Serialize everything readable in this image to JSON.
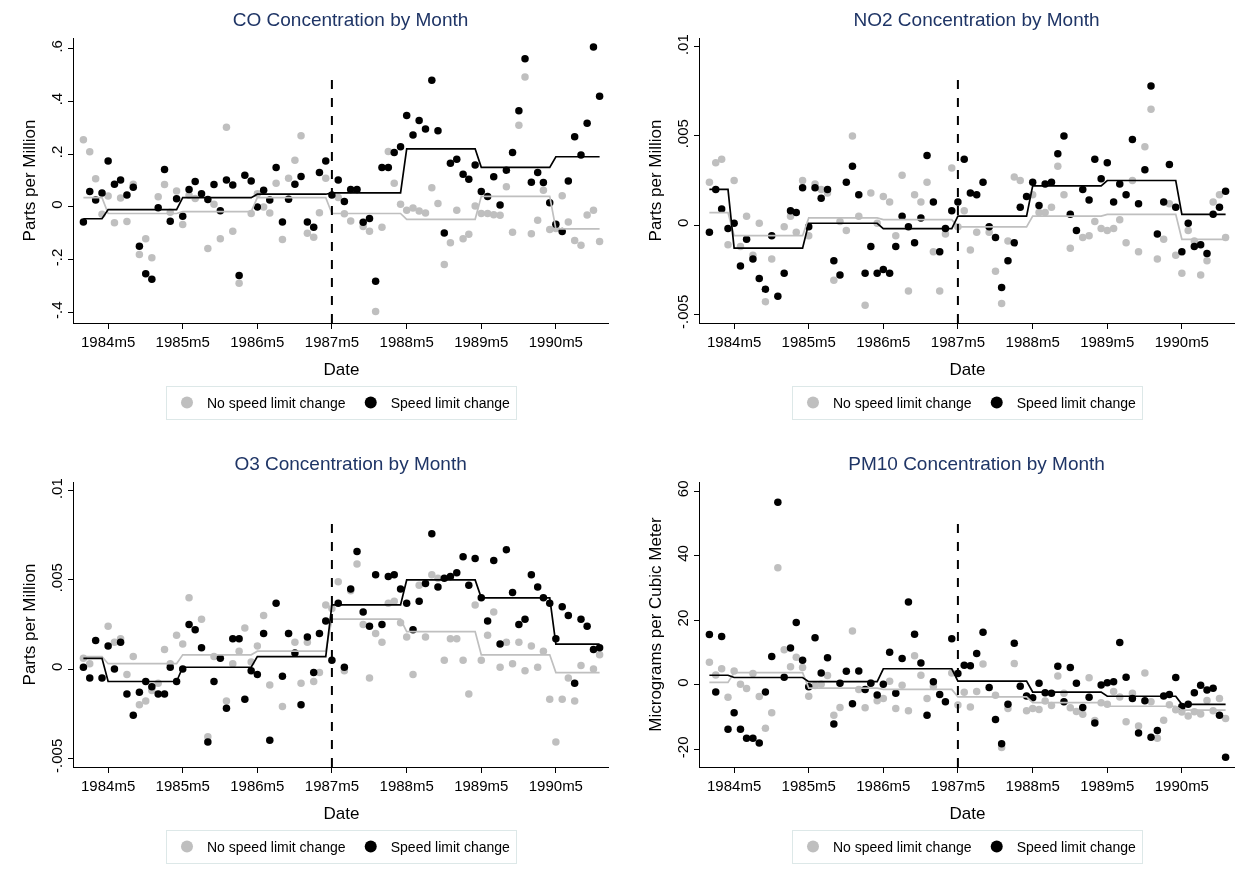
{
  "chart_data": [
    {
      "type": "scatter",
      "title": "CO Concentration by Month",
      "xlabel": "Date",
      "ylabel": "Parts per Million",
      "legend": "bottom",
      "marker": "circle",
      "x": [
        "1984-01",
        "1984-02",
        "1984-03",
        "1984-04",
        "1984-05",
        "1984-06",
        "1984-07",
        "1984-08",
        "1984-09",
        "1984-10",
        "1984-11",
        "1984-12",
        "1985-01",
        "1985-02",
        "1985-03",
        "1985-04",
        "1985-05",
        "1985-06",
        "1985-07",
        "1985-08",
        "1985-09",
        "1985-10",
        "1985-11",
        "1985-12",
        "1986-01",
        "1986-02",
        "1986-03",
        "1986-04",
        "1986-05",
        "1986-06",
        "1986-07",
        "1986-08",
        "1986-09",
        "1986-10",
        "1986-11",
        "1986-12",
        "1987-01",
        "1987-02",
        "1987-03",
        "1987-04",
        "1987-05",
        "1987-06",
        "1987-07",
        "1987-08",
        "1987-09",
        "1987-10",
        "1987-11",
        "1987-12",
        "1988-01",
        "1988-02",
        "1988-03",
        "1988-04",
        "1988-05",
        "1988-06",
        "1988-07",
        "1988-08",
        "1988-09",
        "1988-10",
        "1988-11",
        "1988-12",
        "1989-01",
        "1989-02",
        "1989-03",
        "1989-04",
        "1989-05",
        "1989-06",
        "1989-07",
        "1989-08",
        "1989-09",
        "1989-10",
        "1989-11",
        "1989-12",
        "1990-01",
        "1990-02",
        "1990-03",
        "1990-04",
        "1990-05",
        "1990-06",
        "1990-07",
        "1990-08",
        "1990-09",
        "1990-10",
        "1990-11",
        "1990-12"
      ],
      "xlim": [
        "1983-11-16",
        "1991-01-16"
      ],
      "xticks": [
        {
          "value": "1984-05",
          "label": "1984m5"
        },
        {
          "value": "1985-05",
          "label": "1985m5"
        },
        {
          "value": "1986-05",
          "label": "1986m5"
        },
        {
          "value": "1987-05",
          "label": "1987m5"
        },
        {
          "value": "1988-05",
          "label": "1988m5"
        },
        {
          "value": "1989-05",
          "label": "1989m5"
        },
        {
          "value": "1990-05",
          "label": "1990m5"
        }
      ],
      "ylim": [
        -0.44,
        0.64
      ],
      "yticks": [
        {
          "value": -0.4,
          "label": "-.4"
        },
        {
          "value": -0.2,
          "label": "-.2"
        },
        0,
        {
          "value": 0.2,
          "label": ".2"
        },
        {
          "value": 0.4,
          "label": ".4"
        },
        {
          "value": 0.6,
          "label": ".6"
        }
      ],
      "ref_lines": [
        {
          "axis": "x",
          "value": "1987-05",
          "line_style": "dashed",
          "color": "#000000"
        }
      ],
      "series": [
        {
          "name": "No speed limit change",
          "color": "#bfbfbf",
          "values": [
            0.254,
            0.209,
            0.107,
            -0.028,
            0.041,
            -0.06,
            0.034,
            -0.055,
            0.086,
            -0.18,
            -0.121,
            -0.193,
            0.038,
            0.085,
            -0.02,
            0.06,
            -0.067,
            0.044,
            0.032,
            null,
            -0.158,
            0.01,
            -0.121,
            0.302,
            -0.092,
            -0.289,
            null,
            -0.025,
            0.05,
            0.0,
            -0.023,
            0.09,
            -0.124,
            0.109,
            0.177,
            0.27,
            -0.1,
            -0.115,
            -0.022,
            0.109,
            null,
            0.036,
            -0.026,
            -0.053,
            null,
            -0.074,
            -0.092,
            -0.396,
            -0.077,
            0.21,
            0.09,
            0.01,
            -0.013,
            -0.004,
            -0.016,
            -0.023,
            0.073,
            0.013,
            -0.218,
            -0.136,
            -0.013,
            -0.121,
            -0.104,
            0.003,
            -0.025,
            -0.025,
            -0.03,
            -0.032,
            0.076,
            -0.096,
            0.309,
            0.492,
            -0.102,
            -0.051,
            0.063,
            -0.086,
            -0.082,
            0.042,
            -0.057,
            -0.127,
            -0.145,
            -0.031,
            -0.013,
            -0.131
          ]
        },
        {
          "name": "Speed limit change",
          "color": "#000000",
          "values": [
            -0.057,
            0.058,
            0.026,
            0.053,
            0.174,
            0.086,
            0.102,
            0.045,
            0.074,
            -0.149,
            -0.253,
            -0.274,
            -0.003,
            0.142,
            -0.054,
            0.031,
            -0.035,
            0.066,
            0.096,
            0.05,
            0.028,
            0.085,
            -0.015,
            0.102,
            0.083,
            -0.26,
            0.12,
            0.098,
            0.0,
            0.063,
            0.026,
            0.149,
            -0.057,
            0.029,
            0.086,
            0.115,
            -0.057,
            -0.077,
            0.13,
            0.174,
            0.045,
            0.102,
            0.02,
            0.066,
            0.066,
            -0.058,
            -0.044,
            -0.282,
            0.149,
            0.149,
            0.206,
            0.228,
            0.346,
            0.272,
            0.327,
            0.295,
            0.48,
            0.289,
            -0.099,
            0.165,
            0.181,
            0.124,
            0.105,
            0.159,
            0.058,
            0.039,
            0.114,
            0.007,
            0.139,
            0.206,
            0.364,
            0.561,
            0.093,
            0.13,
            0.092,
            0.016,
            -0.066,
            -0.093,
            0.098,
            0.266,
            0.197,
            0.317,
            0.606,
            0.419
          ]
        },
        {
          "type": "line",
          "color": "#bfbfbf",
          "x": [
            "1984-01",
            "1984-04",
            "1984-05",
            "1985-04",
            "1985-05",
            "1986-04",
            "1986-05",
            "1987-04",
            "1987-05",
            "1988-04",
            "1988-05",
            "1989-04",
            "1989-05",
            "1990-04",
            "1990-05",
            "1990-12"
          ],
          "marker": "none",
          "values": [
            0.035,
            0.035,
            -0.025,
            -0.025,
            -0.018,
            -0.018,
            0.035,
            0.035,
            -0.025,
            -0.025,
            -0.047,
            -0.047,
            0.04,
            0.04,
            -0.083,
            -0.083
          ]
        },
        {
          "type": "line",
          "color": "#000000",
          "x": [
            "1984-01",
            "1984-04",
            "1984-05",
            "1985-04",
            "1985-05",
            "1986-04",
            "1986-05",
            "1987-04",
            "1987-05",
            "1988-04",
            "1988-05",
            "1989-04",
            "1989-05",
            "1990-04",
            "1990-05",
            "1990-12"
          ],
          "marker": "none",
          "values": [
            -0.045,
            -0.045,
            -0.01,
            -0.01,
            0.035,
            0.035,
            0.048,
            0.048,
            0.053,
            0.053,
            0.22,
            0.22,
            0.15,
            0.15,
            0.19,
            0.19
          ]
        }
      ]
    },
    {
      "type": "scatter",
      "title": "NO2 Concentration by Month",
      "xlabel": "Date",
      "ylabel": "Parts per Million",
      "legend": "bottom",
      "marker": "circle",
      "x": [
        "1984-01",
        "1984-02",
        "1984-03",
        "1984-04",
        "1984-05",
        "1984-06",
        "1984-07",
        "1984-08",
        "1984-09",
        "1984-10",
        "1984-11",
        "1984-12",
        "1985-01",
        "1985-02",
        "1985-03",
        "1985-04",
        "1985-05",
        "1985-06",
        "1985-07",
        "1985-08",
        "1985-09",
        "1985-10",
        "1985-11",
        "1985-12",
        "1986-01",
        "1986-02",
        "1986-03",
        "1986-04",
        "1986-05",
        "1986-06",
        "1986-07",
        "1986-08",
        "1986-09",
        "1986-10",
        "1986-11",
        "1986-12",
        "1987-01",
        "1987-02",
        "1987-03",
        "1987-04",
        "1987-05",
        "1987-06",
        "1987-07",
        "1987-08",
        "1987-09",
        "1987-10",
        "1987-11",
        "1987-12",
        "1988-01",
        "1988-02",
        "1988-03",
        "1988-04",
        "1988-05",
        "1988-06",
        "1988-07",
        "1988-08",
        "1988-09",
        "1988-10",
        "1988-11",
        "1988-12",
        "1989-01",
        "1989-02",
        "1989-03",
        "1989-04",
        "1989-05",
        "1989-06",
        "1989-07",
        "1989-08",
        "1989-09",
        "1989-10",
        "1989-11",
        "1989-12",
        "1990-01",
        "1990-02",
        "1990-03",
        "1990-04",
        "1990-05",
        "1990-06",
        "1990-07",
        "1990-08",
        "1990-09",
        "1990-10",
        "1990-11",
        "1990-12"
      ],
      "xlim": [
        "1983-11-16",
        "1991-01-16"
      ],
      "xticks": [
        {
          "value": "1984-05",
          "label": "1984m5"
        },
        {
          "value": "1985-05",
          "label": "1985m5"
        },
        {
          "value": "1986-05",
          "label": "1986m5"
        },
        {
          "value": "1987-05",
          "label": "1987m5"
        },
        {
          "value": "1988-05",
          "label": "1988m5"
        },
        {
          "value": "1989-05",
          "label": "1989m5"
        },
        {
          "value": "1990-05",
          "label": "1990m5"
        }
      ],
      "ylim": [
        -0.0055,
        0.0105
      ],
      "yticks": [
        {
          "value": -0.005,
          "label": "-.005"
        },
        0,
        {
          "value": 0.005,
          "label": ".005"
        },
        {
          "value": 0.01,
          "label": ".01"
        }
      ],
      "ref_lines": [
        {
          "axis": "x",
          "value": "1987-05",
          "line_style": "dashed",
          "color": "#000000"
        }
      ],
      "series": [
        {
          "name": "No speed limit change",
          "color": "#bfbfbf",
          "values": [
            0.0024,
            0.0035,
            0.0037,
            -0.0011,
            0.0025,
            -0.0012,
            0.0005,
            -0.0017,
            0.0001,
            -0.0043,
            -0.0019,
            null,
            -0.0001,
            0.0005,
            -0.0004,
            0.0025,
            -0.0006,
            0.0023,
            0.002,
            0.0018,
            -0.0031,
            0.0002,
            -0.0003,
            0.005,
            0.0005,
            -0.0045,
            0.0018,
            0.0001,
            0.0016,
            0.0013,
            -0.0006,
            0.0028,
            -0.0037,
            0.0017,
            0.0013,
            0.0024,
            -0.0015,
            -0.0037,
            -0.0005,
            0.0032,
            -0.0001,
            0.0008,
            -0.0014,
            -0.0004,
            null,
            -0.0004,
            -0.0026,
            -0.0044,
            -0.0009,
            0.0027,
            0.0025,
            null,
            0.0017,
            0.0007,
            0.0007,
            0.001,
            0.0033,
            0.0017,
            -0.0013,
            null,
            -0.0007,
            -0.0006,
            0.0002,
            -0.0002,
            -0.0003,
            -0.0002,
            0.0003,
            -0.001,
            0.0025,
            -0.0015,
            0.0044,
            0.0065,
            -0.0019,
            -0.0008,
            0.0012,
            -0.0017,
            -0.0027,
            -0.0003,
            -0.0009,
            -0.0028,
            -0.002,
            0.0013,
            0.0017,
            -0.0007
          ]
        },
        {
          "name": "Speed limit change",
          "color": "#000000",
          "values": [
            -0.0004,
            0.002,
            0.0009,
            -0.0002,
            0.0001,
            -0.0023,
            -0.0008,
            -0.0019,
            -0.003,
            -0.0036,
            -0.0006,
            -0.004,
            -0.0027,
            0.0008,
            0.0007,
            0.0021,
            -0.0001,
            0.0021,
            0.0015,
            0.002,
            -0.002,
            -0.0028,
            0.0024,
            0.0033,
            0.0017,
            -0.0027,
            -0.0012,
            -0.0027,
            -0.0025,
            -0.0027,
            -0.0012,
            0.0005,
            -0.0001,
            -0.001,
            0.0004,
            0.0039,
            0.0013,
            -0.0015,
            -0.0002,
            0.0008,
            0.0013,
            0.0037,
            0.0018,
            0.0017,
            0.0024,
            -0.0001,
            -0.0007,
            -0.0035,
            -0.002,
            -0.001,
            0.001,
            0.0016,
            0.0024,
            0.0011,
            0.0023,
            0.0024,
            0.004,
            0.005,
            0.0006,
            -0.0003,
            0.002,
            0.0014,
            0.0037,
            0.0026,
            0.0035,
            0.0013,
            0.0023,
            0.0017,
            0.0048,
            0.0012,
            0.0031,
            0.0078,
            -0.0005,
            0.0013,
            0.0034,
            0.001,
            -0.0015,
            0.0001,
            -0.0012,
            -0.0011,
            -0.0016,
            0.0006,
            0.001,
            0.0019
          ]
        },
        {
          "type": "line",
          "color": "#bfbfbf",
          "x": [
            "1984-01",
            "1984-04",
            "1984-05",
            "1985-04",
            "1985-05",
            "1986-04",
            "1986-05",
            "1987-04",
            "1987-05",
            "1988-04",
            "1988-05",
            "1989-04",
            "1989-05",
            "1990-04",
            "1990-05",
            "1990-12"
          ],
          "marker": "none",
          "values": [
            0.0007,
            0.0007,
            -0.0006,
            -0.0006,
            0.0004,
            0.0004,
            0.0003,
            0.0003,
            -0.0001,
            -0.0001,
            0.0005,
            0.0005,
            0.0006,
            0.0006,
            -0.0008,
            -0.0008
          ]
        },
        {
          "type": "line",
          "color": "#000000",
          "x": [
            "1984-01",
            "1984-04",
            "1984-05",
            "1985-04",
            "1985-05",
            "1986-04",
            "1986-05",
            "1987-04",
            "1987-05",
            "1988-04",
            "1988-05",
            "1989-04",
            "1989-05",
            "1990-04",
            "1990-05",
            "1990-12"
          ],
          "marker": "none",
          "values": [
            0.002,
            0.002,
            -0.0013,
            -0.0013,
            0.0001,
            0.0001,
            -0.0002,
            -0.0002,
            0.0005,
            0.0005,
            0.0022,
            0.0022,
            0.0025,
            0.0025,
            0.0006,
            0.0006
          ]
        }
      ]
    },
    {
      "type": "scatter",
      "title": "O3 Concentration by Month",
      "xlabel": "Date",
      "ylabel": "Parts per Million",
      "legend": "bottom",
      "marker": "circle",
      "x": [
        "1984-01",
        "1984-02",
        "1984-03",
        "1984-04",
        "1984-05",
        "1984-06",
        "1984-07",
        "1984-08",
        "1984-09",
        "1984-10",
        "1984-11",
        "1984-12",
        "1985-01",
        "1985-02",
        "1985-03",
        "1985-04",
        "1985-05",
        "1985-06",
        "1985-07",
        "1985-08",
        "1985-09",
        "1985-10",
        "1985-11",
        "1985-12",
        "1986-01",
        "1986-02",
        "1986-03",
        "1986-04",
        "1986-05",
        "1986-06",
        "1986-07",
        "1986-08",
        "1986-09",
        "1986-10",
        "1986-11",
        "1986-12",
        "1987-01",
        "1987-02",
        "1987-03",
        "1987-04",
        "1987-05",
        "1987-06",
        "1987-07",
        "1987-08",
        "1987-09",
        "1987-10",
        "1987-11",
        "1987-12",
        "1988-01",
        "1988-02",
        "1988-03",
        "1988-04",
        "1988-05",
        "1988-06",
        "1988-07",
        "1988-08",
        "1988-09",
        "1988-10",
        "1988-11",
        "1988-12",
        "1989-01",
        "1989-02",
        "1989-03",
        "1989-04",
        "1989-05",
        "1989-06",
        "1989-07",
        "1989-08",
        "1989-09",
        "1989-10",
        "1989-11",
        "1989-12",
        "1990-01",
        "1990-02",
        "1990-03",
        "1990-04",
        "1990-05",
        "1990-06",
        "1990-07",
        "1990-08",
        "1990-09",
        "1990-10",
        "1990-11",
        "1990-12"
      ],
      "xlim": [
        "1983-11-16",
        "1991-01-16"
      ],
      "xticks": [
        {
          "value": "1984-05",
          "label": "1984m5"
        },
        {
          "value": "1985-05",
          "label": "1985m5"
        },
        {
          "value": "1986-05",
          "label": "1986m5"
        },
        {
          "value": "1987-05",
          "label": "1987m5"
        },
        {
          "value": "1988-05",
          "label": "1988m5"
        },
        {
          "value": "1989-05",
          "label": "1989m5"
        },
        {
          "value": "1990-05",
          "label": "1990m5"
        }
      ],
      "ylim": [
        -0.0055,
        0.0105
      ],
      "yticks": [
        {
          "value": -0.005,
          "label": "-.005"
        },
        0,
        {
          "value": 0.005,
          "label": ".005"
        },
        {
          "value": 0.01,
          "label": ".01"
        }
      ],
      "ref_lines": [
        {
          "axis": "x",
          "value": "1987-05",
          "line_style": "dashed",
          "color": "#000000"
        }
      ],
      "series": [
        {
          "name": "No speed limit change",
          "color": "#bfbfbf",
          "values": [
            0.0006,
            0.0003,
            null,
            null,
            0.0024,
            0.0015,
            0.0017,
            -0.0003,
            0.0007,
            -0.002,
            -0.0018,
            -0.0012,
            -0.0008,
            0.0011,
            0.0003,
            0.0019,
            0.0014,
            0.004,
            null,
            0.0028,
            -0.0038,
            0.0007,
            null,
            -0.0018,
            0.0003,
            0.001,
            0.0023,
            0.0004,
            0.0013,
            0.003,
            -0.0009,
            null,
            -0.0021,
            0.002,
            0.0015,
            -0.0008,
            0.0015,
            -0.0007,
            -0.0002,
            0.0036,
            0.0034,
            0.0049,
            -0.0001,
            0.0044,
            0.0059,
            0.0025,
            -0.0005,
            0.002,
            0.0015,
            0.0037,
            0.0038,
            0.0026,
            0.0018,
            -0.0003,
            0.0047,
            0.0018,
            0.0053,
            0.0051,
            0.0005,
            0.0017,
            0.0017,
            0.0005,
            -0.0014,
            0.0036,
            0.0005,
            0.0019,
            0.0032,
            0.0001,
            0.0015,
            0.0003,
            0.0015,
            -0.0001,
            0.0013,
            0.0001,
            0.001,
            -0.0017,
            -0.0041,
            -0.0017,
            -0.0005,
            -0.0018,
            0.0002,
            null,
            0.0,
            0.0008
          ]
        },
        {
          "name": "Speed limit change",
          "color": "#000000",
          "values": [
            0.0001,
            -0.0005,
            0.0016,
            -0.0005,
            0.0013,
            0.0,
            0.0015,
            -0.0014,
            -0.0026,
            -0.0013,
            -0.0007,
            -0.001,
            -0.0014,
            -0.0014,
            0.0001,
            -0.0007,
            0.0,
            0.0025,
            0.0022,
            0.0012,
            -0.0041,
            -0.0007,
            0.0006,
            -0.0022,
            0.0017,
            0.0017,
            -0.0017,
            -0.0001,
            -0.0003,
            0.002,
            -0.004,
            0.0037,
            -0.0004,
            0.002,
            0.0009,
            -0.002,
            0.0018,
            -0.0002,
            0.002,
            0.0027,
            0.0005,
            0.0037,
            0.0001,
            0.0045,
            0.0066,
            0.0032,
            0.0024,
            0.0053,
            0.0025,
            0.0052,
            0.0053,
            0.0045,
            0.0037,
            0.0022,
            0.0038,
            0.0048,
            0.0076,
            0.0046,
            0.0051,
            0.0052,
            0.0054,
            0.0063,
            0.0047,
            0.0062,
            0.004,
            0.0027,
            0.0061,
            0.0014,
            0.0067,
            0.0043,
            0.0025,
            0.0028,
            0.0053,
            0.0046,
            0.004,
            0.0037,
            0.0017,
            0.0035,
            0.003,
            -0.0008,
            0.0028,
            0.0024,
            0.0011,
            0.0012
          ]
        },
        {
          "type": "line",
          "color": "#bfbfbf",
          "x": [
            "1984-01",
            "1984-04",
            "1984-05",
            "1985-04",
            "1985-05",
            "1986-04",
            "1986-05",
            "1987-04",
            "1987-05",
            "1988-04",
            "1988-05",
            "1989-04",
            "1989-05",
            "1990-04",
            "1990-05",
            "1990-12"
          ],
          "marker": "none",
          "values": [
            0.0007,
            0.0007,
            0.0003,
            0.0003,
            0.0008,
            0.0008,
            0.001,
            0.001,
            0.0028,
            0.0028,
            0.0021,
            0.0021,
            0.0008,
            0.0008,
            -0.0002,
            -0.0002
          ]
        },
        {
          "type": "line",
          "color": "#000000",
          "x": [
            "1984-01",
            "1984-04",
            "1984-05",
            "1985-04",
            "1985-05",
            "1986-04",
            "1986-05",
            "1987-04",
            "1987-05",
            "1988-04",
            "1988-05",
            "1989-04",
            "1989-05",
            "1990-04",
            "1990-05",
            "1990-12"
          ],
          "marker": "none",
          "values": [
            0.0006,
            0.0006,
            -0.0007,
            -0.0007,
            0.0001,
            0.0001,
            0.0007,
            0.0007,
            0.0036,
            0.0036,
            0.005,
            0.005,
            0.004,
            0.004,
            0.0014,
            0.0014
          ]
        }
      ]
    },
    {
      "type": "scatter",
      "title": "PM10 Concentration by Month",
      "xlabel": "Date",
      "ylabel": "Micrograms per Cubic Meter",
      "legend": "bottom",
      "marker": "circle",
      "x": [
        "1984-01",
        "1984-02",
        "1984-03",
        "1984-04",
        "1984-05",
        "1984-06",
        "1984-07",
        "1984-08",
        "1984-09",
        "1984-10",
        "1984-11",
        "1984-12",
        "1985-01",
        "1985-02",
        "1985-03",
        "1985-04",
        "1985-05",
        "1985-06",
        "1985-07",
        "1985-08",
        "1985-09",
        "1985-10",
        "1985-11",
        "1985-12",
        "1986-01",
        "1986-02",
        "1986-03",
        "1986-04",
        "1986-05",
        "1986-06",
        "1986-07",
        "1986-08",
        "1986-09",
        "1986-10",
        "1986-11",
        "1986-12",
        "1987-01",
        "1987-02",
        "1987-03",
        "1987-04",
        "1987-05",
        "1987-06",
        "1987-07",
        "1987-08",
        "1987-09",
        "1987-10",
        "1987-11",
        "1987-12",
        "1988-01",
        "1988-02",
        "1988-03",
        "1988-04",
        "1988-05",
        "1988-06",
        "1988-07",
        "1988-08",
        "1988-09",
        "1988-10",
        "1988-11",
        "1988-12",
        "1989-01",
        "1989-02",
        "1989-03",
        "1989-04",
        "1989-05",
        "1989-06",
        "1989-07",
        "1989-08",
        "1989-09",
        "1989-10",
        "1989-11",
        "1989-12",
        "1990-01",
        "1990-02",
        "1990-03",
        "1990-04",
        "1990-05",
        "1990-06",
        "1990-07",
        "1990-08",
        "1990-09",
        "1990-10",
        "1990-11",
        "1990-12"
      ],
      "xlim": [
        "1983-11-16",
        "1991-01-16"
      ],
      "xticks": [
        {
          "value": "1984-05",
          "label": "1984m5"
        },
        {
          "value": "1985-05",
          "label": "1985m5"
        },
        {
          "value": "1986-05",
          "label": "1986m5"
        },
        {
          "value": "1987-05",
          "label": "1987m5"
        },
        {
          "value": "1988-05",
          "label": "1988m5"
        },
        {
          "value": "1989-05",
          "label": "1989m5"
        },
        {
          "value": "1990-05",
          "label": "1990m5"
        }
      ],
      "ylim": [
        -25.4,
        62.8
      ],
      "yticks": [
        -20,
        0,
        20,
        40,
        60
      ],
      "ref_lines": [
        {
          "axis": "x",
          "value": "1987-05",
          "line_style": "dashed",
          "color": "#000000"
        }
      ],
      "series": [
        {
          "name": "No speed limit change",
          "color": "#bfbfbf",
          "values": [
            7,
            3.1,
            5,
            -3.8,
            4.3,
            0.2,
            -1.1,
            3.5,
            -3.6,
            -13.4,
            -8.6,
            36.3,
            10.9,
            5.6,
            8.6,
            5.4,
            -3.5,
            -0.2,
            0.2,
            2.9,
            -9.4,
            -7,
            null,
            16.7,
            -1.4,
            -7.1,
            0.7,
            -4.9,
            -4.2,
            1.1,
            -7.3,
            -0.1,
            -8,
            9,
            3,
            -4.2,
            -0.5,
            null,
            null,
            3.7,
            -6.2,
            -2.3,
            -6.8,
            -2,
            6.5,
            null,
            -3.2,
            -19.4,
            -7.3,
            6.6,
            null,
            -8,
            -7.3,
            -7.6,
            -5,
            -6.4,
            2.8,
            -2.6,
            -7.1,
            -8.2,
            -9.1,
            2.2,
            -11,
            -5.5,
            -6,
            -2,
            -3.7,
            -11.4,
            -2.6,
            -12.7,
            3.7,
            -5.2,
            -16.5,
            -10.9,
            -6.1,
            -7.7,
            -8.4,
            -9.6,
            -8.3,
            -9,
            -4.8,
            -8,
            -4.2,
            -10.4
          ]
        },
        {
          "name": "Speed limit change",
          "color": "#000000",
          "values": [
            15.6,
            -2.2,
            15,
            -13.7,
            -8.6,
            -13.7,
            -16.5,
            -16.5,
            -18,
            -2.2,
            8.8,
            56.5,
            2.4,
            11.4,
            19.3,
            7.6,
            -0.6,
            14.6,
            3.7,
            8.4,
            -12.1,
            0.5,
            4.2,
            -5.8,
            4.3,
            -1.4,
            0.5,
            -3.1,
            0.2,
            10.1,
            -2.6,
            8.2,
            25.7,
            15.7,
            6.8,
            -9.4,
            1,
            -3,
            -5.2,
            14.3,
            3.5,
            6.1,
            5.9,
            9.7,
            16.3,
            -0.8,
            -10.7,
            -18.2,
            -6,
            12.9,
            -0.4,
            -3.4,
            -4,
            0.5,
            -2.4,
            -2.6,
            5.8,
            -5.2,
            5.4,
            0.5,
            -7,
            -3.8,
            -11.8,
            0,
            0.7,
            1,
            13.1,
            2.4,
            -4.2,
            -14.9,
            -4.9,
            -16.2,
            -14.1,
            -3.4,
            -3,
            2.3,
            -6.7,
            -6,
            -2.4,
            -0.1,
            -1.6,
            -1,
            -9.4,
            -22.4
          ]
        },
        {
          "type": "line",
          "color": "#bfbfbf",
          "x": [
            "1984-01",
            "1984-04",
            "1984-05",
            "1985-04",
            "1985-05",
            "1986-04",
            "1986-05",
            "1987-04",
            "1987-05",
            "1988-04",
            "1988-05",
            "1989-04",
            "1989-05",
            "1990-04",
            "1990-05",
            "1990-12"
          ],
          "marker": "none",
          "values": [
            0.8,
            0.8,
            3.8,
            3.8,
            -1,
            -1,
            -1.4,
            -1.4,
            -3.7,
            -3.7,
            -5.5,
            -5.5,
            -6.6,
            -6.6,
            -7.8,
            -7.8
          ]
        },
        {
          "type": "line",
          "color": "#000000",
          "x": [
            "1984-01",
            "1984-04",
            "1984-05",
            "1985-04",
            "1985-05",
            "1986-04",
            "1986-05",
            "1987-04",
            "1987-05",
            "1988-04",
            "1988-05",
            "1989-04",
            "1989-05",
            "1990-04",
            "1990-05",
            "1990-12"
          ],
          "marker": "none",
          "values": [
            3,
            3,
            2.3,
            2.3,
            1,
            1,
            5,
            5,
            1.2,
            1.2,
            -2.2,
            -2.2,
            -3.5,
            -3.5,
            -6,
            -6
          ]
        }
      ]
    }
  ]
}
